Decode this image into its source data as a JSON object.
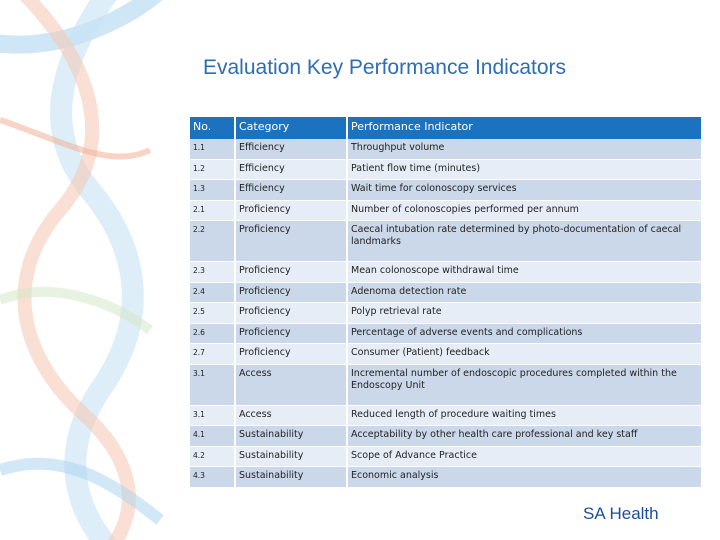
{
  "slide": {
    "title": "Evaluation Key Performance Indicators",
    "brand": "SA Health",
    "colors": {
      "header": "#1b73c0",
      "row_dark": "#cbd8e9",
      "row_light": "#e7edf6",
      "title": "#2e6db4"
    }
  },
  "table": {
    "headers": {
      "no": "No.",
      "category": "Category",
      "indicator": "Performance Indicator"
    },
    "rows": [
      {
        "no": "1.1",
        "category": "Efficiency",
        "indicator": "Throughput volume"
      },
      {
        "no": "1.2",
        "category": "Efficiency",
        "indicator": "Patient flow time (minutes)"
      },
      {
        "no": "1.3",
        "category": "Efficiency",
        "indicator": "Wait time for colonoscopy services"
      },
      {
        "no": "2.1",
        "category": "Proficiency",
        "indicator": "Number of colonoscopies performed per annum"
      },
      {
        "no": "2.2",
        "category": "Proficiency",
        "indicator": "Caecal intubation rate determined by photo-documentation of caecal landmarks"
      },
      {
        "no": "2.3",
        "category": "Proficiency",
        "indicator": "Mean colonoscope withdrawal time"
      },
      {
        "no": "2.4",
        "category": "Proficiency",
        "indicator": "Adenoma detection rate"
      },
      {
        "no": "2.5",
        "category": "Proficiency",
        "indicator": "Polyp retrieval rate"
      },
      {
        "no": "2.6",
        "category": "Proficiency",
        "indicator": "Percentage of adverse events and complications"
      },
      {
        "no": "2.7",
        "category": "Proficiency",
        "indicator": "Consumer (Patient) feedback"
      },
      {
        "no": "3.1",
        "category": "Access",
        "indicator": "Incremental number of endoscopic procedures completed within the Endoscopy Unit"
      },
      {
        "no": "3.1",
        "category": "Access",
        "indicator": "Reduced length of procedure waiting times"
      },
      {
        "no": "4.1",
        "category": "Sustainability",
        "indicator": "Acceptability by other health care professional and key staff"
      },
      {
        "no": "4.2",
        "category": "Sustainability",
        "indicator": "Scope of Advance Practice"
      },
      {
        "no": "4.3",
        "category": "Sustainability",
        "indicator": "Economic analysis"
      }
    ]
  }
}
